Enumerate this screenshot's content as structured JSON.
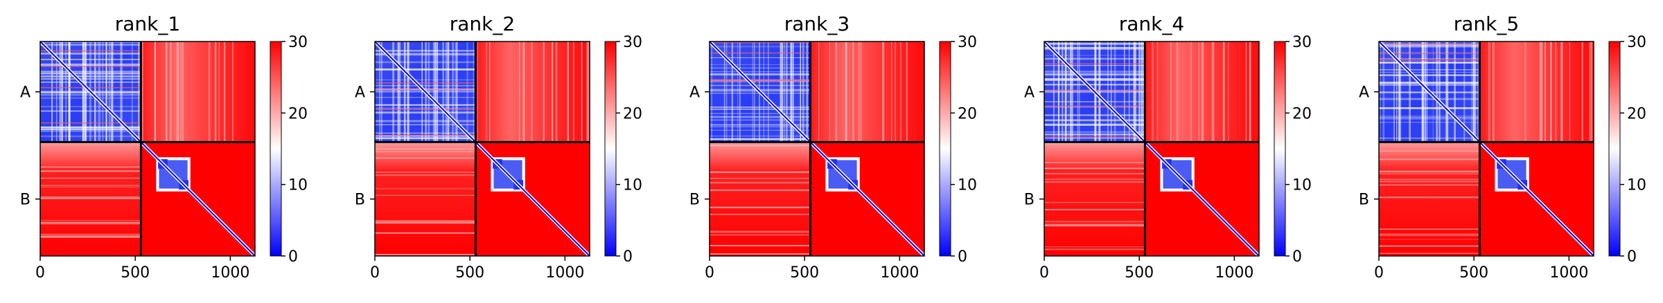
{
  "chart_data": {
    "type": "heatmap",
    "colormap": {
      "min_color": "#0000ff",
      "mid_color": "#ffffff",
      "max_color": "#ff0000"
    },
    "chain_boundary": 530,
    "x_range": [
      0,
      1130
    ],
    "color_range": [
      0,
      30
    ],
    "xticks": [
      0,
      500,
      1000
    ],
    "yticks": [
      {
        "value": 265,
        "label": "A"
      },
      {
        "value": 830,
        "label": "B"
      }
    ],
    "colorbar_ticks": [
      0,
      10,
      20,
      30
    ],
    "panels": [
      {
        "title": "rank_1"
      },
      {
        "title": "rank_2"
      },
      {
        "title": "rank_3"
      },
      {
        "title": "rank_4"
      },
      {
        "title": "rank_5"
      }
    ]
  }
}
